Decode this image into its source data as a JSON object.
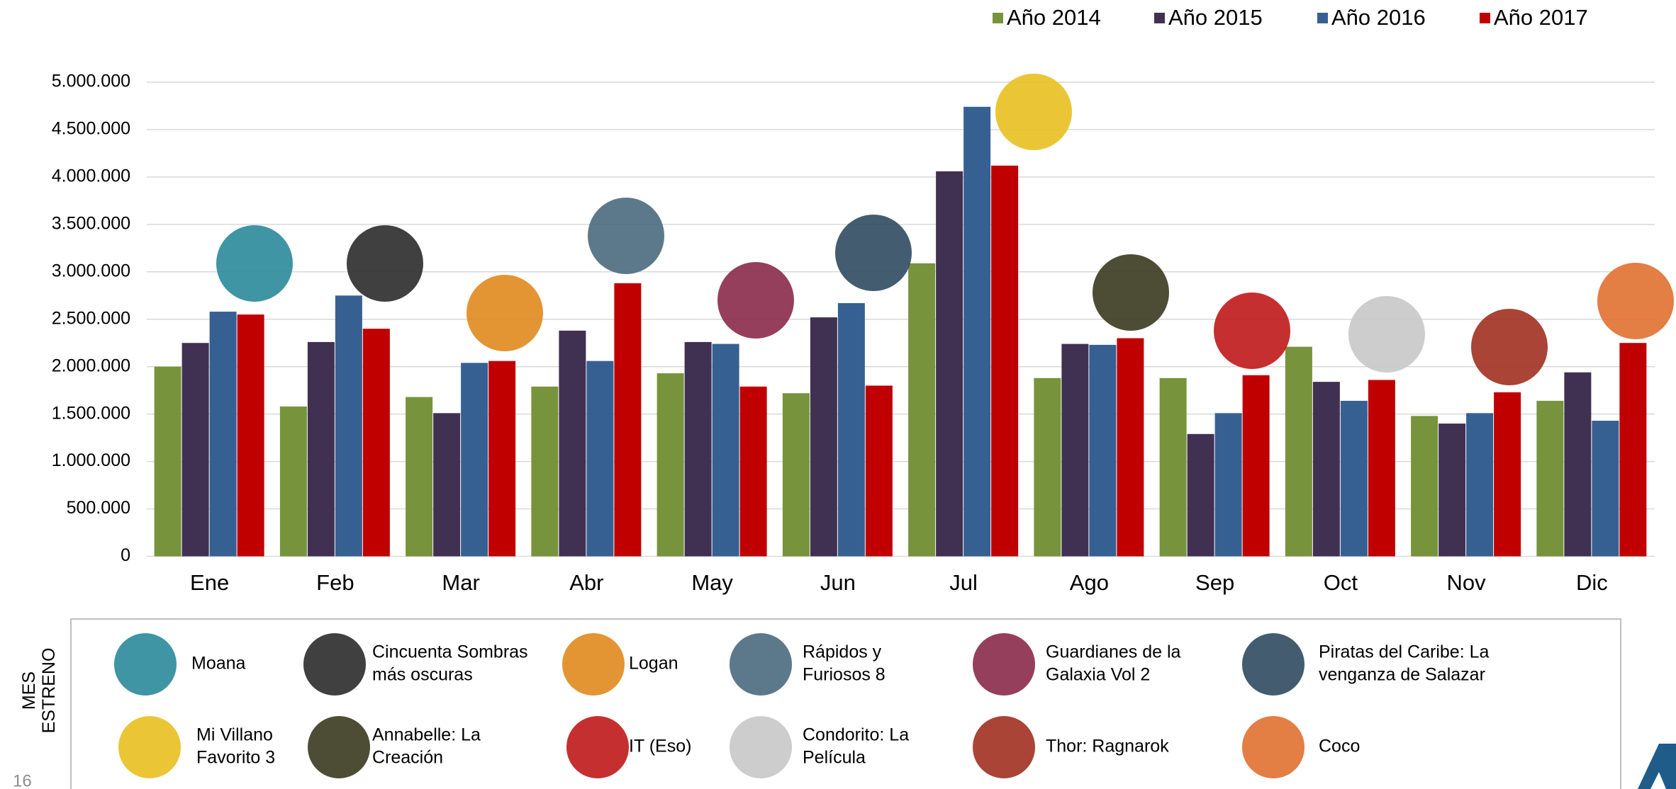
{
  "chart_data": {
    "type": "bar",
    "categories": [
      "Ene",
      "Feb",
      "Mar",
      "Abr",
      "May",
      "Jun",
      "Jul",
      "Ago",
      "Sep",
      "Oct",
      "Nov",
      "Dic"
    ],
    "series": [
      {
        "name": "Año 2014",
        "color": "#77933c",
        "values": [
          2000000,
          1580000,
          1680000,
          1790000,
          1930000,
          1720000,
          3090000,
          1880000,
          1880000,
          2210000,
          1480000,
          1640000
        ]
      },
      {
        "name": "Año 2015",
        "color": "#403152",
        "values": [
          2250000,
          2260000,
          1510000,
          2380000,
          2260000,
          2520000,
          4060000,
          2240000,
          1290000,
          1840000,
          1400000,
          1940000
        ]
      },
      {
        "name": "Año 2016",
        "color": "#376092",
        "values": [
          2580000,
          2750000,
          2040000,
          2060000,
          2240000,
          2670000,
          4740000,
          2230000,
          1510000,
          1640000,
          1510000,
          1430000
        ]
      },
      {
        "name": "Año 2017",
        "color": "#c00000",
        "values": [
          2550000,
          2400000,
          2060000,
          2880000,
          1790000,
          1800000,
          4120000,
          2300000,
          1910000,
          1860000,
          1730000,
          2250000
        ]
      }
    ],
    "ylim": [
      0,
      5000000
    ],
    "yticks": [
      0,
      {
        "value": 500000,
        "label": "500.000"
      },
      {
        "value": 1000000,
        "label": "1.000.000"
      },
      {
        "value": 1500000,
        "label": "1.500.000"
      },
      {
        "value": 2000000,
        "label": "2.000.000"
      },
      {
        "value": 2500000,
        "label": "2.500.000"
      },
      {
        "value": 3000000,
        "label": "3.000.000"
      },
      {
        "value": 3500000,
        "label": "3.500.000"
      },
      {
        "value": 4000000,
        "label": "4.000.000"
      },
      {
        "value": 4500000,
        "label": "4.500.000"
      },
      {
        "value": 5000000,
        "label": "5.000.000"
      }
    ],
    "grid": true,
    "legend": "top-right"
  },
  "release_panel": {
    "label": [
      "MES",
      "ESTRENO"
    ],
    "films": [
      {
        "lines": [
          "Moana"
        ]
      },
      {
        "lines": [
          "Cincuenta Sombras",
          "más oscuras"
        ]
      },
      {
        "lines": [
          "Logan"
        ]
      },
      {
        "lines": [
          "Rápidos y",
          "Furiosos 8"
        ]
      },
      {
        "lines": [
          "Guardianes de la",
          "Galaxia Vol 2"
        ]
      },
      {
        "lines": [
          "Piratas del Caribe: La",
          "venganza de Salazar"
        ]
      },
      {
        "lines": [
          "Mi Villano",
          "Favorito 3"
        ]
      },
      {
        "lines": [
          "Annabelle: La",
          "Creación"
        ]
      },
      {
        "lines": [
          "IT (Eso)"
        ]
      },
      {
        "lines": [
          "Condorito: La",
          "Película"
        ]
      },
      {
        "lines": [
          "Thor: Ragnarok"
        ]
      },
      {
        "lines": [
          "Coco"
        ]
      }
    ]
  },
  "page_number": "16"
}
